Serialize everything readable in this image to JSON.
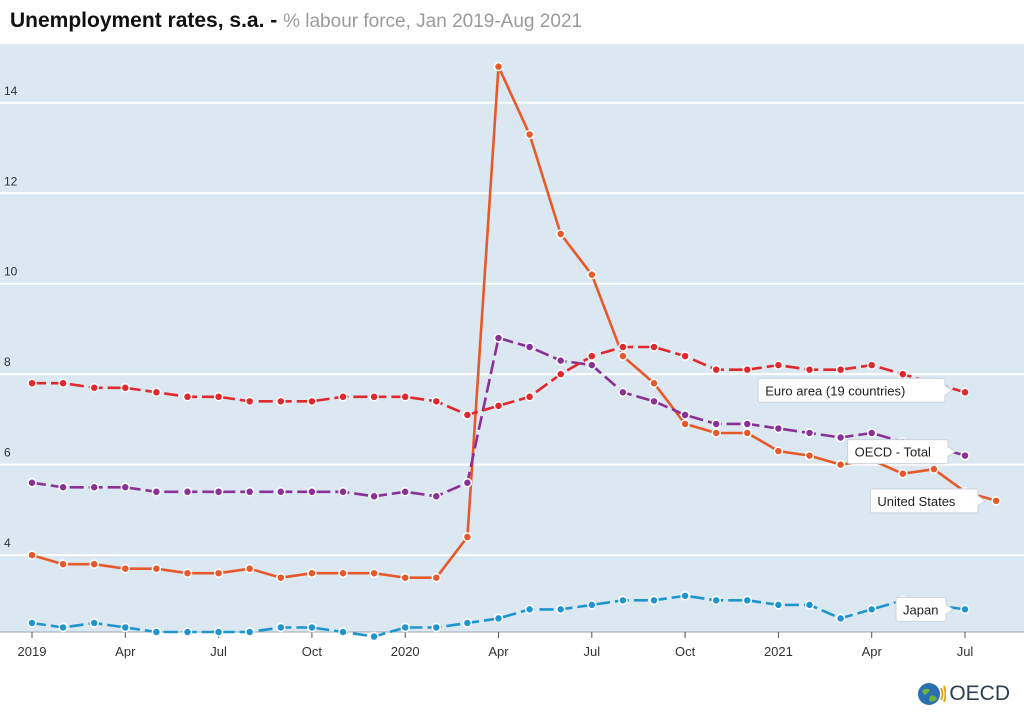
{
  "header": {
    "title": "Unemployment rates, s.a. - ",
    "subtitle": "% labour force, Jan 2019-Aug 2021"
  },
  "logo": {
    "text": "OECD"
  },
  "chart_data": {
    "type": "line",
    "title": "Unemployment rates, s.a.",
    "subtitle": "% labour force, Jan 2019-Aug 2021",
    "xlabel": "",
    "ylabel": "",
    "ylim": [
      2.3,
      15.3
    ],
    "yticks": [
      4,
      6,
      8,
      10,
      12,
      14
    ],
    "x_tick_labels": [
      {
        "index": 0,
        "label": "2019"
      },
      {
        "index": 3,
        "label": "Apr"
      },
      {
        "index": 6,
        "label": "Jul"
      },
      {
        "index": 9,
        "label": "Oct"
      },
      {
        "index": 12,
        "label": "2020"
      },
      {
        "index": 15,
        "label": "Apr"
      },
      {
        "index": 18,
        "label": "Jul"
      },
      {
        "index": 21,
        "label": "Oct"
      },
      {
        "index": 24,
        "label": "2021"
      },
      {
        "index": 27,
        "label": "Apr"
      },
      {
        "index": 30,
        "label": "Jul"
      }
    ],
    "months": [
      "2019-01",
      "2019-02",
      "2019-03",
      "2019-04",
      "2019-05",
      "2019-06",
      "2019-07",
      "2019-08",
      "2019-09",
      "2019-10",
      "2019-11",
      "2019-12",
      "2020-01",
      "2020-02",
      "2020-03",
      "2020-04",
      "2020-05",
      "2020-06",
      "2020-07",
      "2020-08",
      "2020-09",
      "2020-10",
      "2020-11",
      "2020-12",
      "2021-01",
      "2021-02",
      "2021-03",
      "2021-04",
      "2021-05",
      "2021-06",
      "2021-07",
      "2021-08"
    ],
    "grid": true,
    "series": [
      {
        "name": "Euro area (19 countries)",
        "color": "#e0282d",
        "dashed": true,
        "values": [
          7.8,
          7.8,
          7.7,
          7.7,
          7.6,
          7.5,
          7.5,
          7.4,
          7.4,
          7.4,
          7.5,
          7.5,
          7.5,
          7.4,
          7.1,
          7.3,
          7.5,
          8.0,
          8.4,
          8.6,
          8.6,
          8.4,
          8.1,
          8.1,
          8.2,
          8.1,
          8.1,
          8.2,
          8.0,
          7.8,
          7.6,
          null
        ]
      },
      {
        "name": "OECD - Total",
        "color": "#8a3197",
        "dashed": true,
        "values": [
          5.6,
          5.5,
          5.5,
          5.5,
          5.4,
          5.4,
          5.4,
          5.4,
          5.4,
          5.4,
          5.4,
          5.3,
          5.4,
          5.3,
          5.6,
          8.8,
          8.6,
          8.3,
          8.2,
          7.6,
          7.4,
          7.1,
          6.9,
          6.9,
          6.8,
          6.7,
          6.6,
          6.7,
          6.5,
          6.4,
          6.2,
          null
        ]
      },
      {
        "name": "United States",
        "color": "#e8592a",
        "dashed": false,
        "values": [
          4.0,
          3.8,
          3.8,
          3.7,
          3.7,
          3.6,
          3.6,
          3.7,
          3.5,
          3.6,
          3.6,
          3.6,
          3.5,
          3.5,
          4.4,
          14.8,
          13.3,
          11.1,
          10.2,
          8.4,
          7.8,
          6.9,
          6.7,
          6.7,
          6.3,
          6.2,
          6.0,
          6.1,
          5.8,
          5.9,
          5.4,
          5.2
        ]
      },
      {
        "name": "Japan",
        "color": "#1f95d0",
        "dashed": true,
        "values": [
          2.5,
          2.4,
          2.5,
          2.4,
          2.3,
          2.3,
          2.3,
          2.3,
          2.4,
          2.4,
          2.3,
          2.2,
          2.4,
          2.4,
          2.5,
          2.6,
          2.8,
          2.8,
          2.9,
          3.0,
          3.0,
          3.1,
          3.0,
          3.0,
          2.9,
          2.9,
          2.6,
          2.8,
          3.0,
          2.9,
          2.8,
          null
        ]
      }
    ],
    "legend_labels": [
      {
        "text": "Euro area (19 countries)",
        "series": 0
      },
      {
        "text": "OECD - Total",
        "series": 1
      },
      {
        "text": "United States",
        "series": 2
      },
      {
        "text": "Japan",
        "series": 3
      }
    ]
  }
}
